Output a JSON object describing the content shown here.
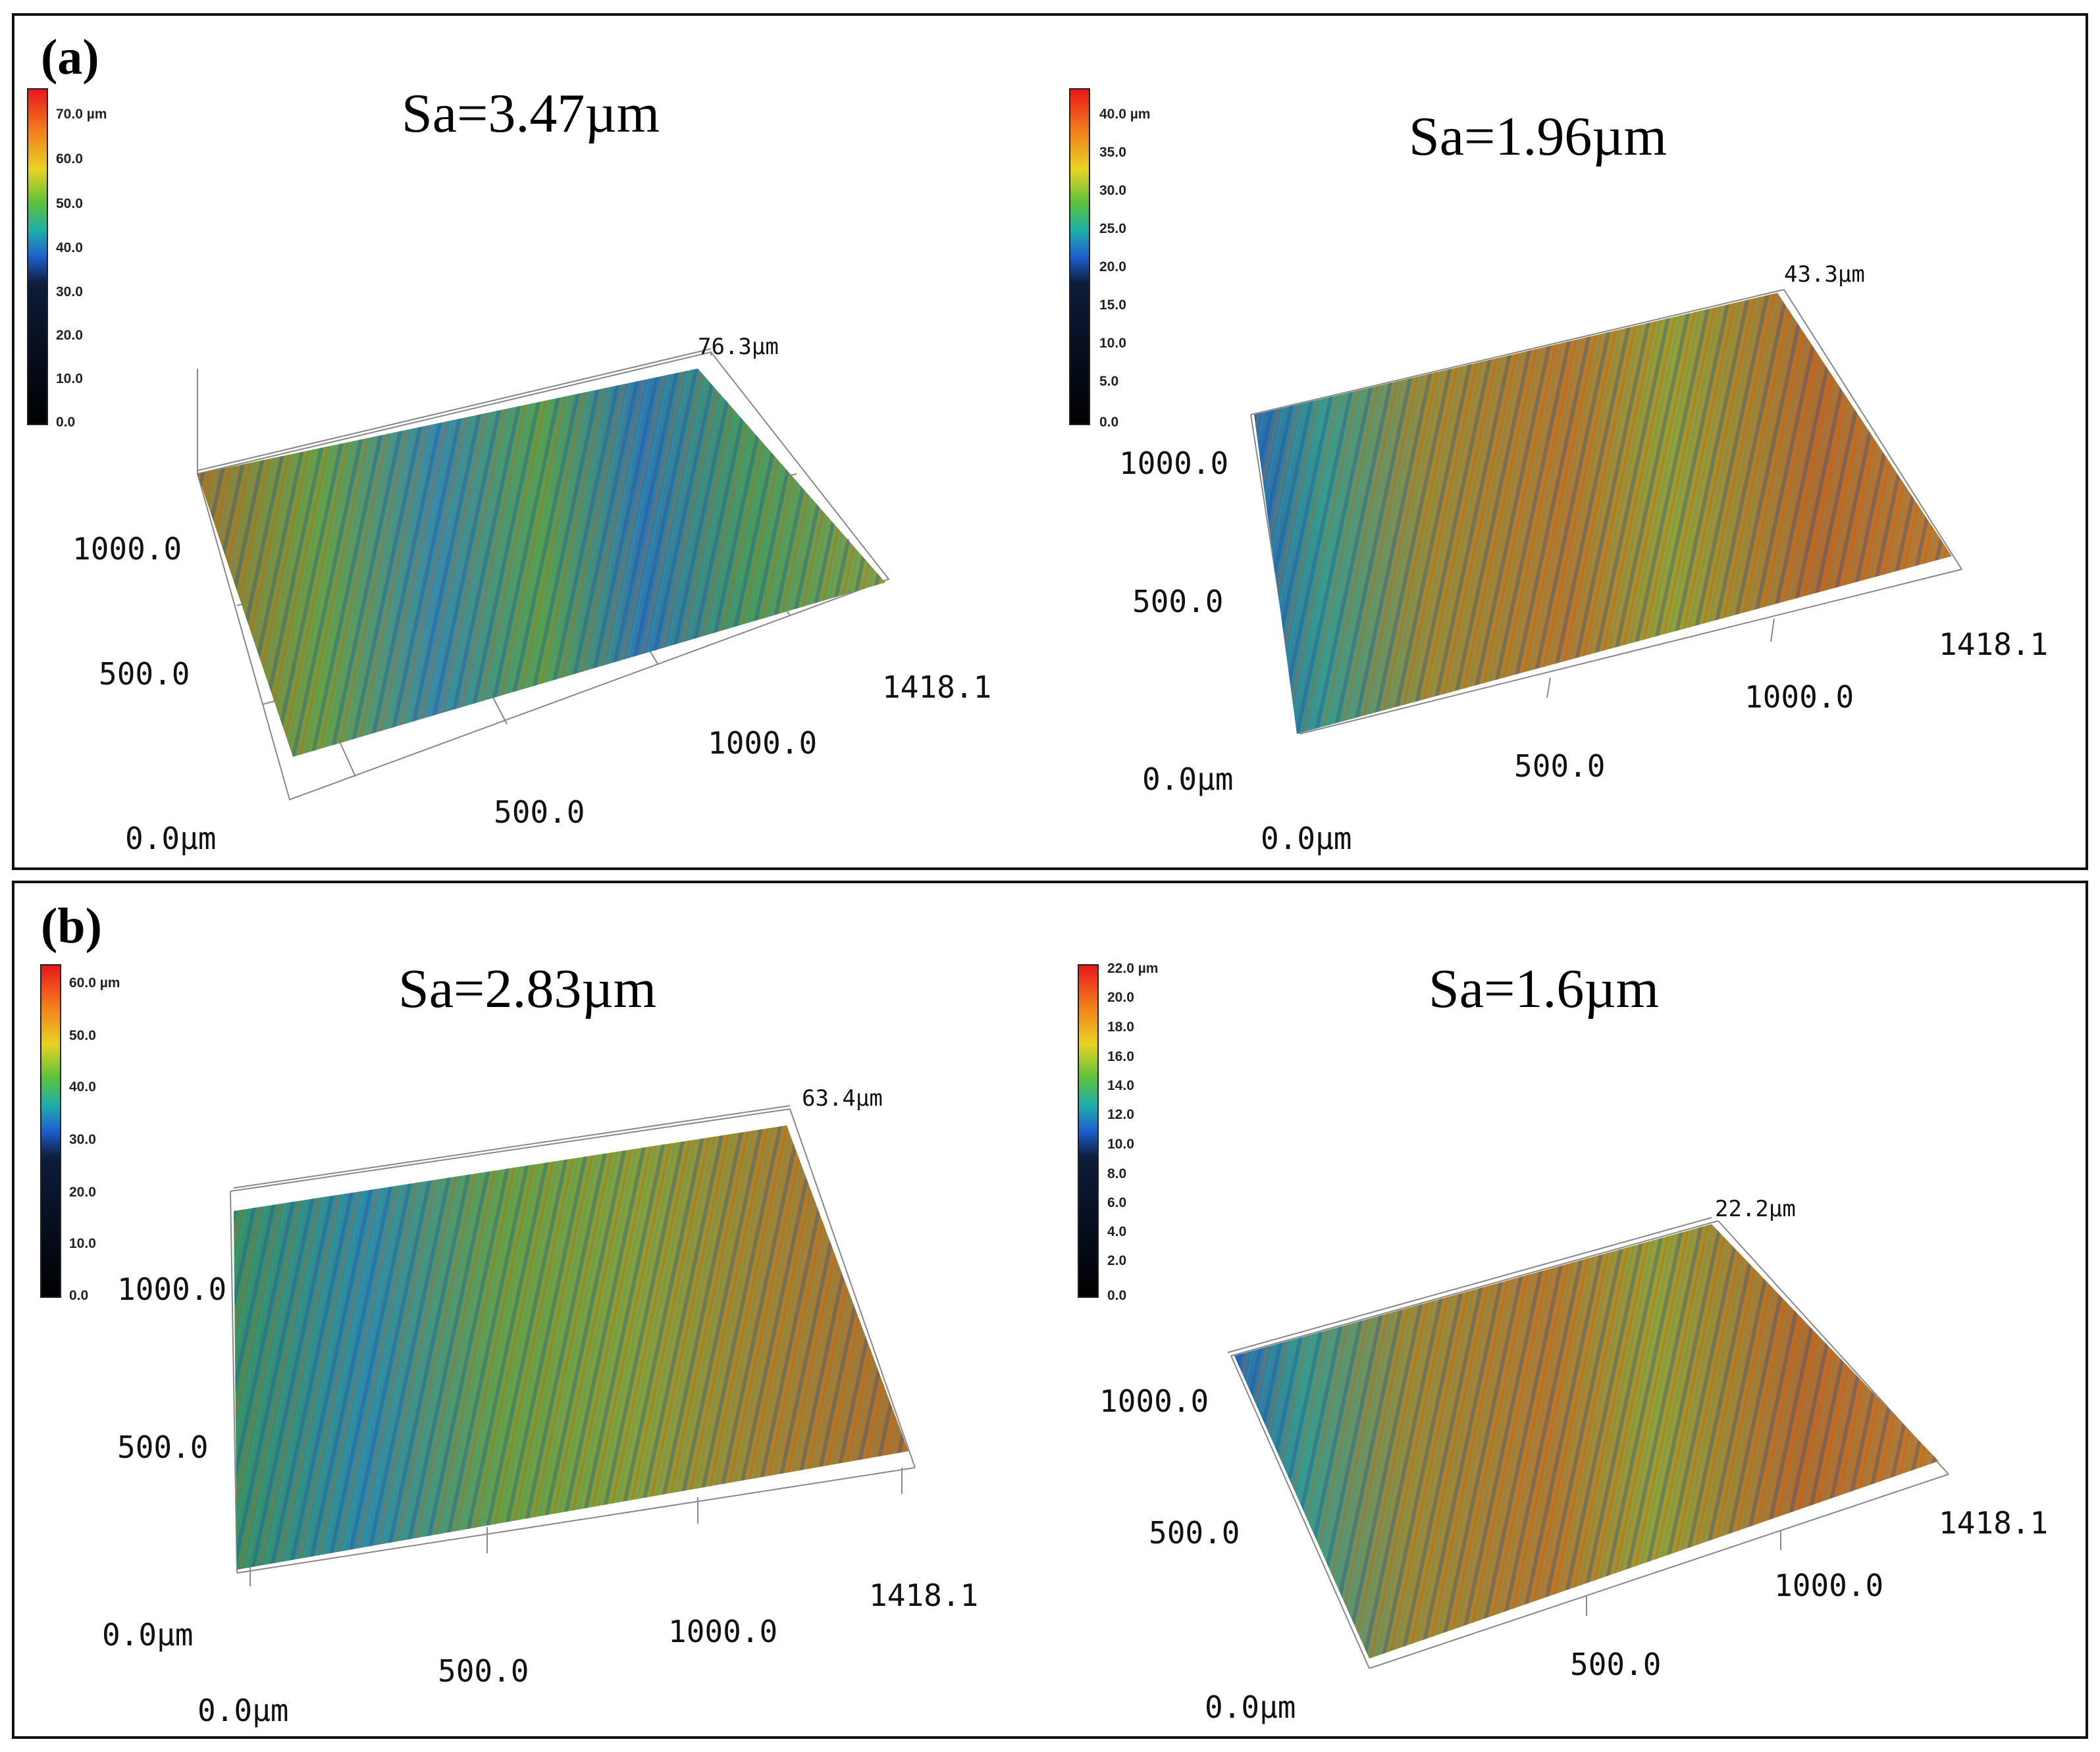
{
  "figure": {
    "panels": [
      {
        "label": "(a)",
        "plots": [
          {
            "sa": "Sa=3.47µm",
            "colorbar_ticks": [
              "70.0 µm",
              "60.0",
              "50.0",
              "40.0",
              "30.0",
              "20.0",
              "10.0",
              "0.0"
            ],
            "z_max": "76.3µm",
            "y_ticks": [
              "1000.0",
              "500.0"
            ],
            "x_ticks": [
              "500.0",
              "1000.0",
              "1418.1"
            ],
            "origin": "0.0µm",
            "surface_tone": "mixed"
          },
          {
            "sa": "Sa=1.96µm",
            "colorbar_ticks": [
              "40.0 µm",
              "35.0",
              "30.0",
              "25.0",
              "20.0",
              "15.0",
              "10.0",
              "5.0",
              "0.0"
            ],
            "z_max": "43.3µm",
            "y_ticks": [
              "1000.0",
              "500.0"
            ],
            "x_ticks": [
              "500.0",
              "1000.0",
              "1418.1"
            ],
            "origin_y": "0.0µm",
            "origin": "0.0µm",
            "surface_tone": "warm"
          }
        ]
      },
      {
        "label": "(b)",
        "plots": [
          {
            "sa": "Sa=2.83µm",
            "colorbar_ticks": [
              "60.0 µm",
              "50.0",
              "40.0",
              "30.0",
              "20.0",
              "10.0",
              "0.0"
            ],
            "z_max": "63.4µm",
            "y_ticks": [
              "1000.0",
              "500.0"
            ],
            "x_ticks": [
              "500.0",
              "1000.0",
              "1418.1"
            ],
            "origin_y": "0.0µm",
            "origin": "0.0µm",
            "surface_tone": "green"
          },
          {
            "sa": "Sa=1.6µm",
            "colorbar_ticks": [
              "22.0 µm",
              "20.0",
              "18.0",
              "16.0",
              "14.0",
              "12.0",
              "10.0",
              "8.0",
              "6.0",
              "4.0",
              "2.0",
              "0.0"
            ],
            "z_max": "22.2µm",
            "y_ticks": [
              "1000.0",
              "500.0"
            ],
            "x_ticks": [
              "500.0",
              "1000.0",
              "1418.1"
            ],
            "origin": "0.0µm",
            "surface_tone": "warm"
          }
        ]
      }
    ],
    "colors": {
      "frame": "#111111",
      "blue": "#1f5fb0",
      "cyan": "#2aa8b8",
      "green": "#5aa83a",
      "olive": "#9a9a2a",
      "orange": "#c0782a",
      "rust": "#b05a22"
    }
  }
}
